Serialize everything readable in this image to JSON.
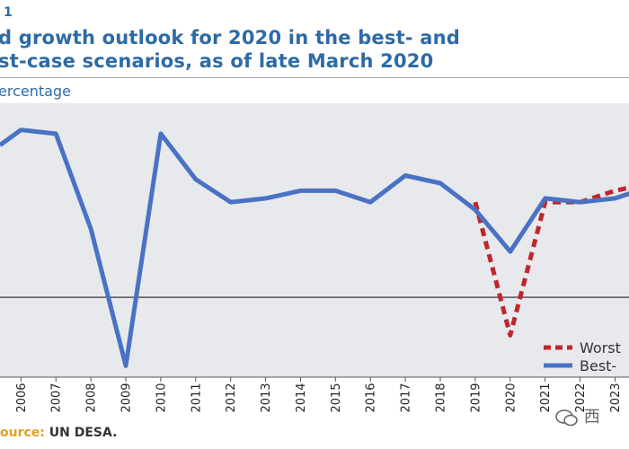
{
  "figure_number": "1",
  "title_line1": "d growth outlook for 2020 in the best- and",
  "title_line2": "st-case scenarios, as of late March 2020",
  "y_unit_label": "ercentage",
  "source_label": "ource:",
  "source_value": "UN DESA.",
  "watermark_text": "西",
  "chart_data": {
    "type": "line",
    "categories": [
      "2006",
      "2007",
      "2008",
      "2009",
      "2010",
      "2011",
      "2012",
      "2013",
      "2014",
      "2015",
      "2016",
      "2017",
      "2018",
      "2019",
      "2020",
      "2021",
      "2022",
      "2023"
    ],
    "xlim": [
      2005.4,
      2023.4
    ],
    "ylim": [
      -2.1,
      5.1
    ],
    "zero_line": 0,
    "grid": false,
    "legend_position": "bottom-right",
    "series": [
      {
        "name": "Worst",
        "color": "#c0272d",
        "style": "dashed",
        "x": [
          2019,
          2020,
          2021,
          2022,
          2023,
          2024
        ],
        "values": [
          2.5,
          -1.0,
          2.5,
          2.5,
          2.8,
          3.0
        ]
      },
      {
        "name": "Best-",
        "color": "#4a72c4",
        "style": "solid",
        "x": [
          2005.4,
          2006,
          2007,
          2008,
          2009,
          2010,
          2011,
          2012,
          2013,
          2014,
          2015,
          2016,
          2017,
          2018,
          2019,
          2020,
          2021,
          2022,
          2023,
          2024
        ],
        "values": [
          4.0,
          4.4,
          4.3,
          1.8,
          -1.8,
          4.3,
          3.1,
          2.5,
          2.6,
          2.8,
          2.8,
          2.5,
          3.2,
          3.0,
          2.3,
          1.2,
          2.6,
          2.5,
          2.6,
          2.9
        ]
      }
    ]
  }
}
